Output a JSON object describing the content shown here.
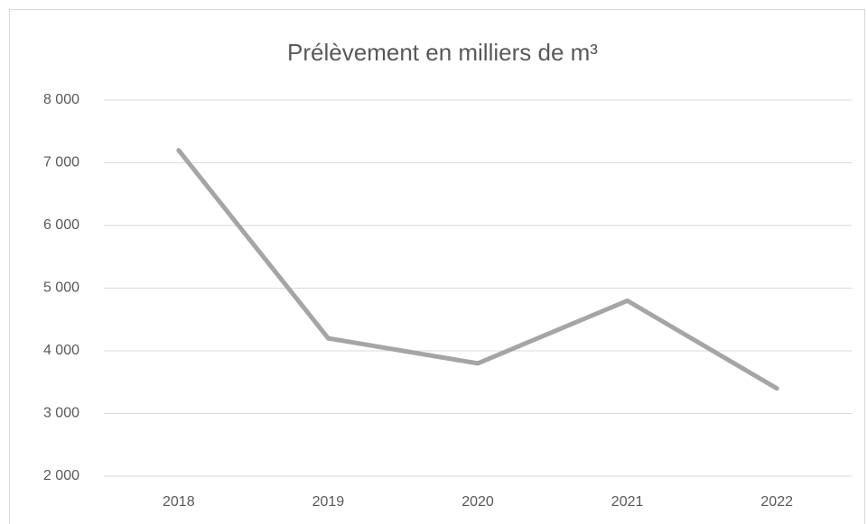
{
  "chart_data": {
    "type": "line",
    "title": "Prélèvement en milliers de m³",
    "categories": [
      "2018",
      "2019",
      "2020",
      "2021",
      "2022"
    ],
    "values": [
      7200,
      4200,
      3800,
      4800,
      3400
    ],
    "color": "#a5a5a5",
    "ylim": [
      2000,
      8000
    ],
    "yticks": [
      {
        "value": 2000,
        "label": "2 000"
      },
      {
        "value": 3000,
        "label": "3 000"
      },
      {
        "value": 4000,
        "label": "4 000"
      },
      {
        "value": 5000,
        "label": "5 000"
      },
      {
        "value": 6000,
        "label": "6 000"
      },
      {
        "value": 7000,
        "label": "7 000"
      },
      {
        "value": 8000,
        "label": "8 000"
      }
    ],
    "grid": true
  }
}
